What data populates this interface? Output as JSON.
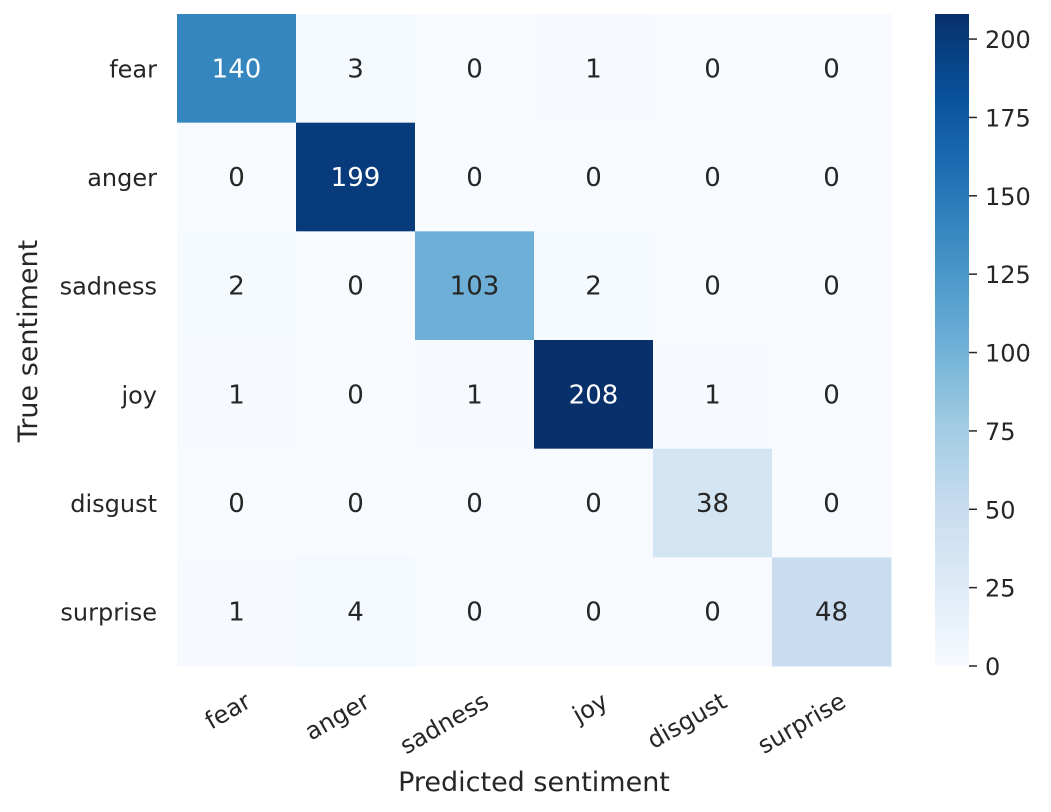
{
  "chart_data": {
    "type": "heatmap",
    "title": "",
    "xlabel": "Predicted sentiment",
    "ylabel": "True sentiment",
    "x_categories": [
      "fear",
      "anger",
      "sadness",
      "joy",
      "disgust",
      "surprise"
    ],
    "y_categories": [
      "fear",
      "anger",
      "sadness",
      "joy",
      "disgust",
      "surprise"
    ],
    "values": [
      [
        140,
        3,
        0,
        1,
        0,
        0
      ],
      [
        0,
        199,
        0,
        0,
        0,
        0
      ],
      [
        2,
        0,
        103,
        2,
        0,
        0
      ],
      [
        1,
        0,
        1,
        208,
        1,
        0
      ],
      [
        0,
        0,
        0,
        0,
        38,
        0
      ],
      [
        1,
        4,
        0,
        0,
        0,
        48
      ]
    ],
    "colormap": "Blues",
    "color_range": [
      0,
      208
    ],
    "colorbar_ticks": [
      0,
      25,
      50,
      75,
      100,
      125,
      150,
      175,
      200
    ],
    "annotation_colors": {
      "light_cell_text": "#262626",
      "dark_cell_text": "#ffffff"
    },
    "colorscale_stops": [
      "#f7fbff",
      "#deebf7",
      "#c6dbef",
      "#9ecae1",
      "#6baed6",
      "#4292c6",
      "#2171b5",
      "#08519c",
      "#08306b"
    ]
  }
}
